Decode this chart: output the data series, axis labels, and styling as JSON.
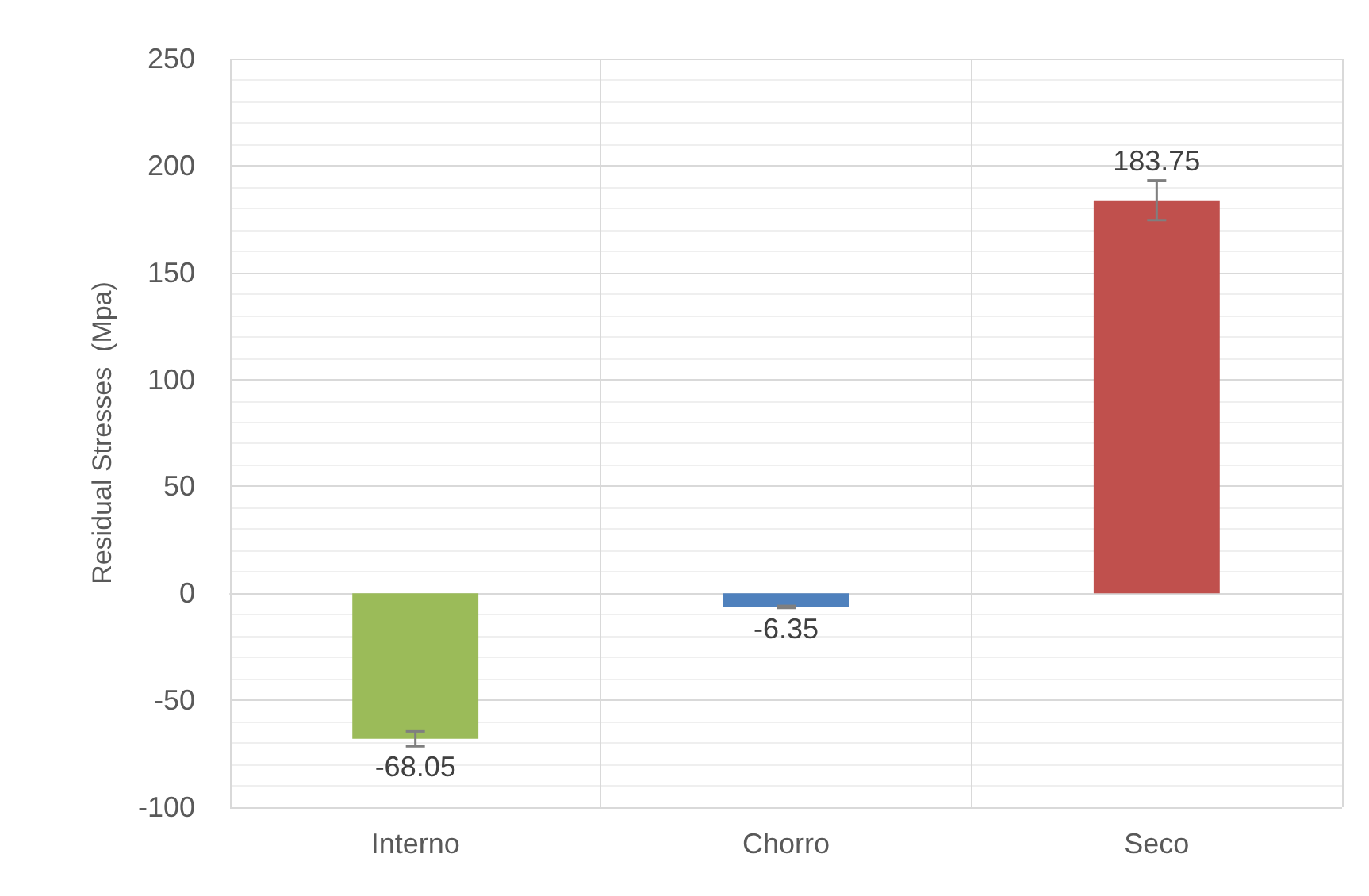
{
  "chart_data": {
    "type": "bar",
    "ylabel": "Residual Stresses  (Mpa)",
    "categories": [
      "Interno",
      "Chorro",
      "Seco"
    ],
    "values": [
      -68.05,
      -6.35,
      183.75
    ],
    "colors": [
      "#9bbb59",
      "#4f81bd",
      "#c0504d"
    ],
    "errors": [
      3.5,
      0.5,
      9.3
    ],
    "data_labels": true,
    "ylim": [
      -100,
      250
    ],
    "yticks": [
      -100,
      -50,
      0,
      50,
      100,
      150,
      200,
      250
    ],
    "grid": true
  }
}
